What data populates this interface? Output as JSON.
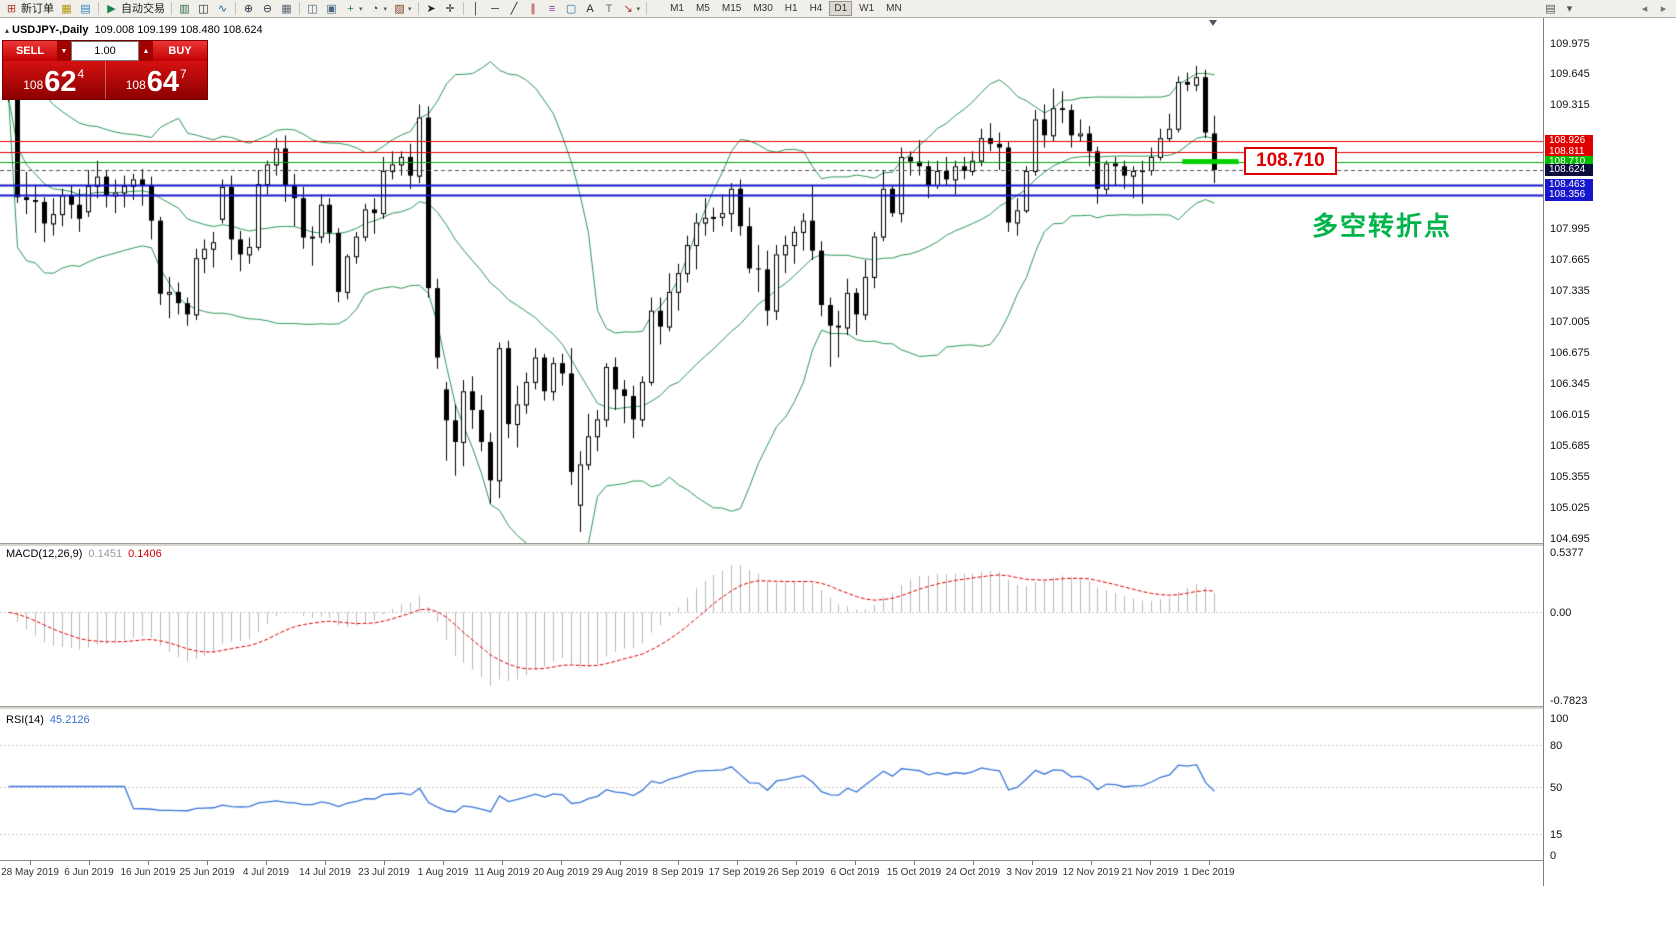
{
  "window": {
    "title_symbol": "USDJPY-,Daily",
    "title_ohlc": "109.008 109.199 108.480 108.624",
    "collapse_glyph": "▴"
  },
  "toolbar": {
    "groups": [
      [
        {
          "name": "new-order-button",
          "glyph": "⊞",
          "color": "#b03a2e",
          "label": "新订单"
        },
        {
          "name": "chart-profile-icon",
          "glyph": "▦",
          "color": "#b7950b"
        },
        {
          "name": "market-watch-icon",
          "glyph": "▤",
          "color": "#2e86c1"
        }
      ],
      [
        {
          "name": "autotrading-button",
          "glyph": "▶",
          "color": "#1e8449",
          "label": "自动交易"
        }
      ],
      [
        {
          "name": "bar-chart-icon",
          "glyph": "▥",
          "color": "#2e6b3e"
        },
        {
          "name": "candlestick-chart-icon",
          "glyph": "◫",
          "color": "#1b2631"
        },
        {
          "name": "line-chart-icon",
          "glyph": "∿",
          "color": "#21618c"
        }
      ],
      [
        {
          "name": "zoom-in-icon",
          "glyph": "⊕",
          "color": "#283747"
        },
        {
          "name": "zoom-out-icon",
          "glyph": "⊖",
          "color": "#283747"
        },
        {
          "name": "auto-arrange-icon",
          "glyph": "▦",
          "color": "#566573"
        }
      ],
      [
        {
          "name": "tile-windows-icon",
          "glyph": "◫",
          "color": "#4a6785"
        },
        {
          "name": "cascade-windows-icon",
          "glyph": "▣",
          "color": "#4a6785"
        },
        {
          "name": "indicators-add-button",
          "glyph": "+",
          "color": "#1e8449",
          "dropdown": true
        },
        {
          "name": "periods-button",
          "glyph": "◔",
          "color": "#283747",
          "dropdown": true
        },
        {
          "name": "templates-button",
          "glyph": "▨",
          "color": "#7d4427",
          "dropdown": true
        }
      ],
      [
        {
          "name": "cursor-icon",
          "glyph": "➤",
          "color": "#1b2631"
        },
        {
          "name": "crosshair-icon",
          "glyph": "✛",
          "color": "#1b2631"
        }
      ],
      [
        {
          "name": "vertical-line-icon",
          "glyph": "│",
          "color": "#1b2631"
        },
        {
          "name": "horizontal-line-icon",
          "glyph": "─",
          "color": "#1b2631"
        },
        {
          "name": "trendline-icon",
          "glyph": "╱",
          "color": "#1b2631"
        },
        {
          "name": "equidistant-channel-icon",
          "glyph": "∥",
          "color": "#a93226"
        },
        {
          "name": "fibonacci-icon",
          "glyph": "≡",
          "color": "#7d3c98"
        },
        {
          "name": "shapes-icon",
          "glyph": "▢",
          "color": "#2471a3"
        },
        {
          "name": "text-icon",
          "glyph": "A",
          "color": "#1b2631"
        },
        {
          "name": "text-label-icon",
          "glyph": "T",
          "color": "#616a6b"
        },
        {
          "name": "arrows-button",
          "glyph": "↘",
          "color": "#a93226",
          "dropdown": true
        }
      ]
    ],
    "timeframes": {
      "items": [
        "M1",
        "M5",
        "M15",
        "M30",
        "H1",
        "H4",
        "D1",
        "W1",
        "MN"
      ],
      "active": "D1"
    },
    "right_icons": [
      {
        "name": "chart-list-icon",
        "glyph": "▤",
        "color": "#555555"
      },
      {
        "name": "toolbar-expand-icon",
        "glyph": "▾",
        "color": "#555555"
      }
    ],
    "corner_icons": [
      {
        "name": "toolbar-scroll-left-icon",
        "glyph": "◂",
        "color": "#777777"
      },
      {
        "name": "toolbar-scroll-right-icon",
        "glyph": "▸",
        "color": "#777777"
      }
    ]
  },
  "trade_panel": {
    "sell_label": "SELL",
    "buy_label": "BUY",
    "volume": "1.00",
    "spin_down_glyph": "▼",
    "spin_up_glyph": "▲",
    "bid_main": "108",
    "bid_big": "62",
    "bid_sup": "4",
    "ask_main": "108",
    "ask_big": "64",
    "ask_sup": "7"
  },
  "macd_panel": {
    "name": "MACD(12,26,9)",
    "value1": "0.1451",
    "value2": "0.1406",
    "axis_max": "0.5377",
    "axis_zero": "0.00",
    "axis_min": "-0.7823"
  },
  "rsi_panel": {
    "name": "RSI(14)",
    "value": "45.2126",
    "axis": [
      "100",
      "80",
      "50",
      "15",
      "0"
    ]
  },
  "annotations": {
    "price_box": "108.710",
    "turning_point_text": "多空转折点"
  },
  "colors": {
    "bull": "#ffffff",
    "bear": "#000000",
    "wick": "#000000",
    "bands": "#2c9658",
    "macd_hist": "#b8b8b8",
    "macd_signal": "#e00000",
    "rsi_line": "#3b76d8",
    "rsi_levels": "#cccccc",
    "segment_green": "#00d000",
    "zero_line": "#c8c8c8"
  },
  "chart_data": {
    "type": "candlestick",
    "symbol": "USDJPY",
    "timeframe": "Daily",
    "ylim": [
      104.695,
      109.975
    ],
    "price_ticks": [
      "109.975",
      "109.645",
      "109.315",
      "107.995",
      "107.665",
      "107.335",
      "107.005",
      "106.675",
      "106.345",
      "106.015",
      "105.685",
      "105.355",
      "105.025",
      "104.695"
    ],
    "levels": [
      {
        "price": 108.926,
        "label": "108.926",
        "line_color": "#e00000",
        "bg": "#e00000",
        "fg": "#ffffff",
        "line_width": 1,
        "tag": true
      },
      {
        "price": 108.811,
        "label": "108.811",
        "line_color": "#e00000",
        "bg": "#e00000",
        "fg": "#ffffff",
        "line_width": 1,
        "tag": true
      },
      {
        "price": 108.71,
        "label": "108.710",
        "line_color": "#00a400",
        "bg": "#00bc00",
        "fg": "#ffffff",
        "line_width": 1,
        "tag": true
      },
      {
        "price": 108.624,
        "label": "108.624",
        "line_color": "#50506e",
        "bg": "#0c0c3c",
        "fg": "#ffffff",
        "line_width": 1,
        "dashed": true,
        "tag": true,
        "is_current": true
      },
      {
        "price": 108.463,
        "label": "108.463",
        "line_color": "#1616cc",
        "bg": "#1616cc",
        "fg": "#ffffff",
        "line_width": 2,
        "tag": true
      },
      {
        "price": 108.356,
        "label": "108.356",
        "line_color": "#1616cc",
        "bg": "#1616cc",
        "fg": "#ffffff",
        "line_width": 2,
        "tag": true
      }
    ],
    "current_price": 108.624,
    "bollinger": {
      "period": 20,
      "deviation": 2
    },
    "macd": {
      "params": [
        12,
        26,
        9
      ],
      "range": [
        -0.7823,
        0.5377
      ]
    },
    "rsi": {
      "period": 14,
      "range": [
        0,
        100
      ],
      "levels": [
        80,
        50,
        15
      ]
    },
    "green_segment": {
      "price": 108.71,
      "bar_start": 131.5,
      "bar_end": 137.8,
      "thickness": 5
    },
    "x_labels": [
      "28 May 2019",
      "6 Jun 2019",
      "16 Jun 2019",
      "25 Jun 2019",
      "4 Jul 2019",
      "14 Jul 2019",
      "23 Jul 2019",
      "1 Aug 2019",
      "11 Aug 2019",
      "20 Aug 2019",
      "29 Aug 2019",
      "8 Sep 2019",
      "17 Sep 2019",
      "26 Sep 2019",
      "6 Oct 2019",
      "15 Oct 2019",
      "24 Oct 2019",
      "3 Nov 2019",
      "12 Nov 2019",
      "21 Nov 2019",
      "1 Dec 2019"
    ],
    "ohlc": [
      [
        109.55,
        109.62,
        109.35,
        109.4
      ],
      [
        109.4,
        109.45,
        108.27,
        108.33
      ],
      [
        108.33,
        108.6,
        108.15,
        108.3
      ],
      [
        108.3,
        108.45,
        107.95,
        108.28
      ],
      [
        108.28,
        108.33,
        107.85,
        108.05
      ],
      [
        108.05,
        108.32,
        107.92,
        108.15
      ],
      [
        108.15,
        108.42,
        108.02,
        108.35
      ],
      [
        108.35,
        108.46,
        108.1,
        108.25
      ],
      [
        108.25,
        108.42,
        107.96,
        108.1
      ],
      [
        108.18,
        108.62,
        108.12,
        108.45
      ],
      [
        108.45,
        108.72,
        108.32,
        108.55
      ],
      [
        108.55,
        108.62,
        108.22,
        108.35
      ],
      [
        108.35,
        108.52,
        108.16,
        108.38
      ],
      [
        108.38,
        108.56,
        108.22,
        108.45
      ],
      [
        108.45,
        108.58,
        108.3,
        108.52
      ],
      [
        108.52,
        108.63,
        108.24,
        108.45
      ],
      [
        108.45,
        108.55,
        107.88,
        108.08
      ],
      [
        108.08,
        108.12,
        107.18,
        107.3
      ],
      [
        107.3,
        107.48,
        107.04,
        107.32
      ],
      [
        107.32,
        107.42,
        107.08,
        107.2
      ],
      [
        107.2,
        107.26,
        106.96,
        107.08
      ],
      [
        107.08,
        107.78,
        107.02,
        107.68
      ],
      [
        107.68,
        107.88,
        107.52,
        107.78
      ],
      [
        107.78,
        107.96,
        107.58,
        107.85
      ],
      [
        108.1,
        108.52,
        108.05,
        108.44
      ],
      [
        108.44,
        108.56,
        107.66,
        107.88
      ],
      [
        107.88,
        107.97,
        107.54,
        107.72
      ],
      [
        107.72,
        107.9,
        107.62,
        107.8
      ],
      [
        107.8,
        108.62,
        107.76,
        108.47
      ],
      [
        108.47,
        108.72,
        108.36,
        108.68
      ],
      [
        108.68,
        108.96,
        108.56,
        108.85
      ],
      [
        108.85,
        108.99,
        108.28,
        108.45
      ],
      [
        108.45,
        108.58,
        108.02,
        108.32
      ],
      [
        108.32,
        108.44,
        107.78,
        107.9
      ],
      [
        107.9,
        108.02,
        107.6,
        107.91
      ],
      [
        107.91,
        108.36,
        107.84,
        108.25
      ],
      [
        108.25,
        108.32,
        107.84,
        107.95
      ],
      [
        107.95,
        108.0,
        107.21,
        107.32
      ],
      [
        107.32,
        107.72,
        107.24,
        107.7
      ],
      [
        107.7,
        107.96,
        107.62,
        107.91
      ],
      [
        107.91,
        108.26,
        107.86,
        108.2
      ],
      [
        108.2,
        108.32,
        107.94,
        108.16
      ],
      [
        108.16,
        108.76,
        108.1,
        108.61
      ],
      [
        108.61,
        108.82,
        108.52,
        108.68
      ],
      [
        108.68,
        108.82,
        108.56,
        108.76
      ],
      [
        108.76,
        108.9,
        108.42,
        108.56
      ],
      [
        108.56,
        109.32,
        108.48,
        109.18
      ],
      [
        109.18,
        109.3,
        107.26,
        107.36
      ],
      [
        107.36,
        107.46,
        106.5,
        106.62
      ],
      [
        106.28,
        106.36,
        105.52,
        105.95
      ],
      [
        105.95,
        106.12,
        105.36,
        105.72
      ],
      [
        105.72,
        106.38,
        105.46,
        106.26
      ],
      [
        106.26,
        106.42,
        105.86,
        106.06
      ],
      [
        106.06,
        106.22,
        105.62,
        105.72
      ],
      [
        105.72,
        105.82,
        105.06,
        105.31
      ],
      [
        105.31,
        106.78,
        105.12,
        106.72
      ],
      [
        106.72,
        106.8,
        105.76,
        105.91
      ],
      [
        105.91,
        106.32,
        105.66,
        106.12
      ],
      [
        106.12,
        106.46,
        106.02,
        106.36
      ],
      [
        106.36,
        106.72,
        106.28,
        106.62
      ],
      [
        106.62,
        106.66,
        106.16,
        106.26
      ],
      [
        106.26,
        106.62,
        106.16,
        106.56
      ],
      [
        106.56,
        106.66,
        106.32,
        106.45
      ],
      [
        106.45,
        106.72,
        105.26,
        105.4
      ],
      [
        105.05,
        105.62,
        104.76,
        105.48
      ],
      [
        105.48,
        106.02,
        105.42,
        105.78
      ],
      [
        105.78,
        106.06,
        105.62,
        105.96
      ],
      [
        105.96,
        106.56,
        105.88,
        106.52
      ],
      [
        106.52,
        106.62,
        106.06,
        106.28
      ],
      [
        106.28,
        106.38,
        105.92,
        106.21
      ],
      [
        106.21,
        106.32,
        105.76,
        105.96
      ],
      [
        105.96,
        106.42,
        105.88,
        106.36
      ],
      [
        106.36,
        107.26,
        106.32,
        107.12
      ],
      [
        107.12,
        107.26,
        106.76,
        106.95
      ],
      [
        106.95,
        107.52,
        106.9,
        107.32
      ],
      [
        107.32,
        107.62,
        107.12,
        107.52
      ],
      [
        107.52,
        107.92,
        107.42,
        107.82
      ],
      [
        107.82,
        108.16,
        107.56,
        108.06
      ],
      [
        108.06,
        108.32,
        107.92,
        108.11
      ],
      [
        108.11,
        108.22,
        107.96,
        108.12
      ],
      [
        108.12,
        108.36,
        108.02,
        108.16
      ],
      [
        108.16,
        108.48,
        107.96,
        108.42
      ],
      [
        108.42,
        108.52,
        107.92,
        108.02
      ],
      [
        108.02,
        108.22,
        107.52,
        107.57
      ],
      [
        107.57,
        107.82,
        107.32,
        107.56
      ],
      [
        107.56,
        107.76,
        106.96,
        107.12
      ],
      [
        107.12,
        107.82,
        107.02,
        107.72
      ],
      [
        107.72,
        107.92,
        107.52,
        107.82
      ],
      [
        107.82,
        108.02,
        107.62,
        107.96
      ],
      [
        107.96,
        108.16,
        107.76,
        108.08
      ],
      [
        108.08,
        108.46,
        107.66,
        107.76
      ],
      [
        107.76,
        107.86,
        107.06,
        107.18
      ],
      [
        107.18,
        107.26,
        106.52,
        106.96
      ],
      [
        106.96,
        107.12,
        106.62,
        106.94
      ],
      [
        106.94,
        107.46,
        106.86,
        107.31
      ],
      [
        107.31,
        107.36,
        106.86,
        107.08
      ],
      [
        107.08,
        107.66,
        107.02,
        107.48
      ],
      [
        107.48,
        107.96,
        107.36,
        107.91
      ],
      [
        107.91,
        108.62,
        107.86,
        108.42
      ],
      [
        108.42,
        108.46,
        108.12,
        108.16
      ],
      [
        108.16,
        108.86,
        108.06,
        108.76
      ],
      [
        108.76,
        108.82,
        108.56,
        108.71
      ],
      [
        108.71,
        108.94,
        108.56,
        108.66
      ],
      [
        108.66,
        108.72,
        108.32,
        108.46
      ],
      [
        108.46,
        108.72,
        108.42,
        108.61
      ],
      [
        108.61,
        108.76,
        108.46,
        108.52
      ],
      [
        108.52,
        108.72,
        108.36,
        108.66
      ],
      [
        108.66,
        108.76,
        108.52,
        108.61
      ],
      [
        108.61,
        108.82,
        108.56,
        108.72
      ],
      [
        108.72,
        109.06,
        108.66,
        108.96
      ],
      [
        108.96,
        109.12,
        108.82,
        108.9
      ],
      [
        108.9,
        109.02,
        108.62,
        108.86
      ],
      [
        108.86,
        108.92,
        107.96,
        108.06
      ],
      [
        108.06,
        108.32,
        107.92,
        108.19
      ],
      [
        108.19,
        108.66,
        108.16,
        108.61
      ],
      [
        108.61,
        109.26,
        108.56,
        109.16
      ],
      [
        109.16,
        109.32,
        108.86,
        108.99
      ],
      [
        108.99,
        109.49,
        108.92,
        109.28
      ],
      [
        109.28,
        109.46,
        109.12,
        109.26
      ],
      [
        109.26,
        109.32,
        108.86,
        108.99
      ],
      [
        108.99,
        109.16,
        108.92,
        109.01
      ],
      [
        109.01,
        109.09,
        108.66,
        108.82
      ],
      [
        108.82,
        108.87,
        108.26,
        108.42
      ],
      [
        108.42,
        108.72,
        108.36,
        108.69
      ],
      [
        108.69,
        108.76,
        108.46,
        108.66
      ],
      [
        108.66,
        108.72,
        108.42,
        108.56
      ],
      [
        108.56,
        108.66,
        108.32,
        108.61
      ],
      [
        108.61,
        108.72,
        108.26,
        108.62
      ],
      [
        108.62,
        108.86,
        108.56,
        108.76
      ],
      [
        108.76,
        109.06,
        108.72,
        108.96
      ],
      [
        108.96,
        109.22,
        108.92,
        109.06
      ],
      [
        109.06,
        109.62,
        109.02,
        109.56
      ],
      [
        109.56,
        109.66,
        109.46,
        109.53
      ],
      [
        109.53,
        109.73,
        109.46,
        109.61
      ],
      [
        109.61,
        109.69,
        108.96,
        109.02
      ],
      [
        109.01,
        109.2,
        108.48,
        108.62
      ]
    ]
  }
}
